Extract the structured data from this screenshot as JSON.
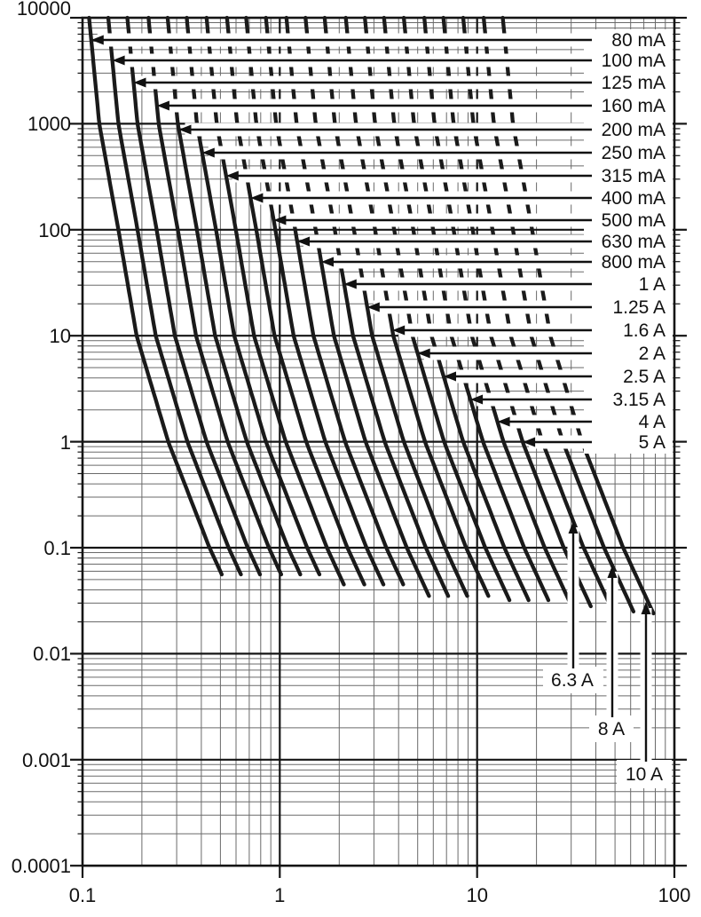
{
  "chart_data": {
    "type": "line",
    "scale": "log-log",
    "title": "",
    "xlabel": "",
    "ylabel": "",
    "x_axis": {
      "tick_labels": [
        "0.1",
        "1",
        "10",
        "100"
      ],
      "range": [
        0.1,
        100
      ]
    },
    "y_axis": {
      "tick_labels": [
        "10000",
        "1000",
        "100",
        "10",
        "1",
        "0.1",
        "0.01",
        "0.001",
        "0.0001"
      ],
      "range": [
        0.0001,
        10000
      ]
    },
    "grid": {
      "major": true,
      "minor": true
    },
    "legend_position": "arrow annotations (right side and bottom)",
    "curve_shape_knots": [
      [
        4,
        1.35
      ],
      [
        3,
        1.52
      ],
      [
        2,
        1.9
      ],
      [
        1,
        2.35
      ],
      [
        0,
        3.4
      ],
      [
        -1,
        5.5
      ],
      [
        -1.7,
        8.2
      ]
    ],
    "series": [
      {
        "label": "80 mA",
        "rating_A": 0.08,
        "annotation": "right",
        "points": [
          [
            0.108,
            10000
          ],
          [
            0.122,
            1000
          ],
          [
            0.152,
            100
          ],
          [
            0.188,
            10
          ],
          [
            0.272,
            1
          ],
          [
            0.44,
            0.1
          ],
          [
            0.51,
            0.056
          ]
        ]
      },
      {
        "label": "100 mA",
        "rating_A": 0.1,
        "annotation": "right",
        "points": [
          [
            0.135,
            10000
          ],
          [
            0.152,
            1000
          ],
          [
            0.19,
            100
          ],
          [
            0.235,
            10
          ],
          [
            0.34,
            1
          ],
          [
            0.55,
            0.1
          ],
          [
            0.64,
            0.056
          ]
        ]
      },
      {
        "label": "125 mA",
        "rating_A": 0.125,
        "annotation": "right",
        "points": [
          [
            0.169,
            10000
          ],
          [
            0.19,
            1000
          ],
          [
            0.238,
            100
          ],
          [
            0.294,
            10
          ],
          [
            0.425,
            1
          ],
          [
            0.688,
            0.1
          ],
          [
            0.79,
            0.056
          ]
        ]
      },
      {
        "label": "160 mA",
        "rating_A": 0.16,
        "annotation": "right",
        "points": [
          [
            0.216,
            10000
          ],
          [
            0.243,
            1000
          ],
          [
            0.304,
            100
          ],
          [
            0.376,
            10
          ],
          [
            0.544,
            1
          ],
          [
            0.88,
            0.1
          ],
          [
            1.02,
            0.056
          ]
        ]
      },
      {
        "label": "200 mA",
        "rating_A": 0.2,
        "annotation": "right",
        "points": [
          [
            0.27,
            10000
          ],
          [
            0.304,
            1000
          ],
          [
            0.38,
            100
          ],
          [
            0.47,
            10
          ],
          [
            0.68,
            1
          ],
          [
            1.1,
            0.1
          ],
          [
            1.27,
            0.056
          ]
        ]
      },
      {
        "label": "250 mA",
        "rating_A": 0.25,
        "annotation": "right",
        "points": [
          [
            0.338,
            10000
          ],
          [
            0.38,
            1000
          ],
          [
            0.475,
            100
          ],
          [
            0.588,
            10
          ],
          [
            0.85,
            1
          ],
          [
            1.38,
            0.1
          ],
          [
            1.59,
            0.056
          ]
        ]
      },
      {
        "label": "315 mA",
        "rating_A": 0.315,
        "annotation": "right",
        "points": [
          [
            0.425,
            10000
          ],
          [
            0.479,
            1000
          ],
          [
            0.599,
            100
          ],
          [
            0.74,
            10
          ],
          [
            1.07,
            1
          ],
          [
            1.73,
            0.1
          ],
          [
            2.11,
            0.045
          ]
        ]
      },
      {
        "label": "400 mA",
        "rating_A": 0.4,
        "annotation": "right",
        "points": [
          [
            0.54,
            10000
          ],
          [
            0.608,
            1000
          ],
          [
            0.76,
            100
          ],
          [
            0.94,
            10
          ],
          [
            1.36,
            1
          ],
          [
            2.2,
            0.1
          ],
          [
            2.68,
            0.045
          ]
        ]
      },
      {
        "label": "500 mA",
        "rating_A": 0.5,
        "annotation": "right",
        "points": [
          [
            0.675,
            10000
          ],
          [
            0.76,
            1000
          ],
          [
            0.95,
            100
          ],
          [
            1.18,
            10
          ],
          [
            1.7,
            1
          ],
          [
            2.75,
            0.1
          ],
          [
            3.36,
            0.045
          ]
        ]
      },
      {
        "label": "630 mA",
        "rating_A": 0.63,
        "annotation": "right",
        "points": [
          [
            0.851,
            10000
          ],
          [
            0.958,
            1000
          ],
          [
            1.2,
            100
          ],
          [
            1.48,
            10
          ],
          [
            2.14,
            1
          ],
          [
            3.47,
            0.1
          ],
          [
            4.23,
            0.045
          ]
        ]
      },
      {
        "label": "800 mA",
        "rating_A": 0.8,
        "annotation": "right",
        "points": [
          [
            1.08,
            10000
          ],
          [
            1.22,
            1000
          ],
          [
            1.52,
            100
          ],
          [
            1.88,
            10
          ],
          [
            2.72,
            1
          ],
          [
            4.4,
            0.1
          ],
          [
            5.69,
            0.035
          ]
        ]
      },
      {
        "label": "1 A",
        "rating_A": 1,
        "annotation": "right",
        "points": [
          [
            1.35,
            10000
          ],
          [
            1.52,
            1000
          ],
          [
            1.9,
            100
          ],
          [
            2.35,
            10
          ],
          [
            3.4,
            1
          ],
          [
            5.5,
            0.1
          ],
          [
            7.11,
            0.035
          ]
        ]
      },
      {
        "label": "1.25 A",
        "rating_A": 1.25,
        "annotation": "right",
        "points": [
          [
            1.69,
            10000
          ],
          [
            1.9,
            1000
          ],
          [
            2.38,
            100
          ],
          [
            2.94,
            10
          ],
          [
            4.25,
            1
          ],
          [
            6.88,
            0.1
          ],
          [
            8.89,
            0.035
          ]
        ]
      },
      {
        "label": "1.6 A",
        "rating_A": 1.6,
        "annotation": "right",
        "points": [
          [
            2.16,
            10000
          ],
          [
            2.43,
            1000
          ],
          [
            3.04,
            100
          ],
          [
            3.76,
            10
          ],
          [
            5.44,
            1
          ],
          [
            8.8,
            0.1
          ],
          [
            11.4,
            0.035
          ]
        ]
      },
      {
        "label": "2 A",
        "rating_A": 2,
        "annotation": "right",
        "points": [
          [
            2.7,
            10000
          ],
          [
            3.04,
            1000
          ],
          [
            3.8,
            100
          ],
          [
            4.7,
            10
          ],
          [
            6.8,
            1
          ],
          [
            11,
            0.1
          ],
          [
            14.6,
            0.032
          ]
        ]
      },
      {
        "label": "2.5 A",
        "rating_A": 2.5,
        "annotation": "right",
        "points": [
          [
            3.38,
            10000
          ],
          [
            3.8,
            1000
          ],
          [
            4.75,
            100
          ],
          [
            5.88,
            10
          ],
          [
            8.5,
            1
          ],
          [
            13.8,
            0.1
          ],
          [
            18.3,
            0.032
          ]
        ]
      },
      {
        "label": "3.15 A",
        "rating_A": 3.15,
        "annotation": "right",
        "points": [
          [
            4.25,
            10000
          ],
          [
            4.79,
            1000
          ],
          [
            5.99,
            100
          ],
          [
            7.4,
            10
          ],
          [
            10.7,
            1
          ],
          [
            17.3,
            0.1
          ],
          [
            23,
            0.032
          ]
        ]
      },
      {
        "label": "4 A",
        "rating_A": 4,
        "annotation": "right",
        "points": [
          [
            5.4,
            10000
          ],
          [
            6.08,
            1000
          ],
          [
            7.6,
            100
          ],
          [
            9.4,
            10
          ],
          [
            13.6,
            1
          ],
          [
            22,
            0.1
          ],
          [
            30.1,
            0.028
          ]
        ]
      },
      {
        "label": "5 A",
        "rating_A": 5,
        "annotation": "right",
        "points": [
          [
            6.75,
            10000
          ],
          [
            7.6,
            1000
          ],
          [
            9.5,
            100
          ],
          [
            11.8,
            10
          ],
          [
            17,
            1
          ],
          [
            27.5,
            0.1
          ],
          [
            37.7,
            0.028
          ]
        ]
      },
      {
        "label": "6.3 A",
        "rating_A": 6.3,
        "annotation": "bottom",
        "points": [
          [
            8.51,
            10000
          ],
          [
            9.58,
            1000
          ],
          [
            12,
            100
          ],
          [
            14.8,
            10
          ],
          [
            21.4,
            1
          ],
          [
            34.7,
            0.1
          ],
          [
            48.3,
            0.026
          ]
        ]
      },
      {
        "label": "8 A",
        "rating_A": 8,
        "annotation": "bottom",
        "points": [
          [
            10.8,
            10000
          ],
          [
            12.2,
            1000
          ],
          [
            15.2,
            100
          ],
          [
            18.8,
            10
          ],
          [
            27.2,
            1
          ],
          [
            44,
            0.1
          ],
          [
            61.9,
            0.025
          ]
        ]
      },
      {
        "label": "10 A",
        "rating_A": 10,
        "annotation": "bottom",
        "points": [
          [
            13.5,
            10000
          ],
          [
            15.2,
            1000
          ],
          [
            19,
            100
          ],
          [
            23.5,
            10
          ],
          [
            34,
            1
          ],
          [
            55,
            0.1
          ],
          [
            78.3,
            0.024
          ]
        ]
      }
    ],
    "colors": {
      "background": "#ffffff",
      "curve": "#1a1a1a",
      "grid_major": "#151515",
      "grid_minor": "#6a6a6a",
      "arrow": "#111111",
      "text": "#111111"
    }
  }
}
